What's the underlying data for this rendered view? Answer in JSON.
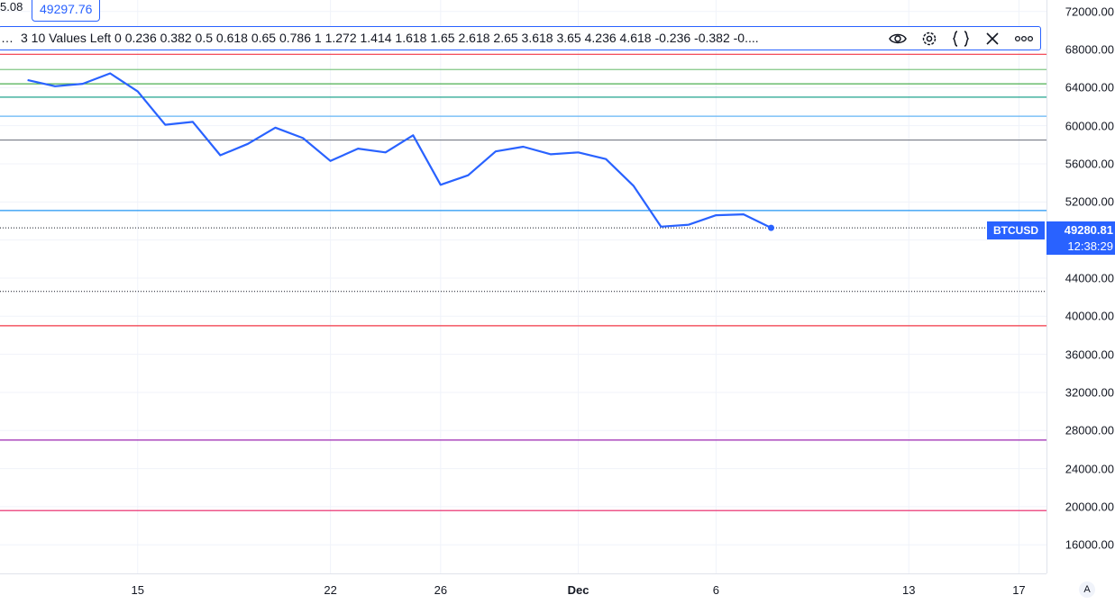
{
  "legend": {
    "prev_value_fragment": "5.08",
    "last_value": "49297.76"
  },
  "fib_toolbar": {
    "left_ellipsis": "…",
    "label": "3 10 Values Left 0 0.236 0.382 0.5 0.618 0.65 0.786 1 1.272 1.414 1.618 1.65 2.618 2.65 3.618 3.65 4.236 4.618 -0.236 -0.382 -0....",
    "icons": [
      "eye-icon",
      "gear-icon",
      "braces-icon",
      "close-icon",
      "more-icon"
    ]
  },
  "symbol_badge": {
    "symbol": "BTCUSD",
    "price": "49280.81",
    "countdown": "12:38:29"
  },
  "axis_auto_label": "A",
  "chart_data": {
    "type": "line",
    "series": [
      {
        "color": "#2962ff",
        "x": [
          "2021-11-11",
          "2021-11-12",
          "2021-11-13",
          "2021-11-14",
          "2021-11-15",
          "2021-11-16",
          "2021-11-17",
          "2021-11-18",
          "2021-11-19",
          "2021-11-20",
          "2021-11-21",
          "2021-11-22",
          "2021-11-23",
          "2021-11-24",
          "2021-11-25",
          "2021-11-26",
          "2021-11-27",
          "2021-11-28",
          "2021-11-29",
          "2021-11-30",
          "2021-12-01",
          "2021-12-02",
          "2021-12-03",
          "2021-12-04",
          "2021-12-05",
          "2021-12-06",
          "2021-12-07",
          "2021-12-08"
        ],
        "values": [
          64800,
          64150,
          64400,
          65500,
          63600,
          60100,
          60400,
          56900,
          58100,
          59800,
          58700,
          56300,
          57600,
          57200,
          59000,
          53800,
          54800,
          57300,
          57800,
          57000,
          57200,
          56500,
          53700,
          49400,
          49600,
          50600,
          50700,
          49280.81
        ]
      }
    ],
    "x_ticks": [
      {
        "date": "2021-11-15",
        "label": "15",
        "bold": false
      },
      {
        "date": "2021-11-22",
        "label": "22",
        "bold": false
      },
      {
        "date": "2021-11-26",
        "label": "26",
        "bold": false
      },
      {
        "date": "2021-12-01",
        "label": "Dec",
        "bold": true
      },
      {
        "date": "2021-12-06",
        "label": "6",
        "bold": false
      },
      {
        "date": "2021-12-13",
        "label": "13",
        "bold": false
      },
      {
        "date": "2021-12-17",
        "label": "17",
        "bold": false
      }
    ],
    "x_range": [
      "2021-11-10",
      "2021-12-18"
    ],
    "y_ticks": [
      16000,
      20000,
      24000,
      28000,
      32000,
      36000,
      40000,
      44000,
      48000,
      52000,
      56000,
      60000,
      64000,
      68000,
      72000
    ],
    "y_tick_labels": [
      "16000.00",
      "20000.00",
      "24000.00",
      "28000.00",
      "32000.00",
      "36000.00",
      "40000.00",
      "44000.00",
      "",
      "52000.00",
      "56000.00",
      "60000.00",
      "64000.00",
      "68000.00",
      "72000.00"
    ],
    "ylim": [
      13000,
      73200
    ],
    "grid": true,
    "fib_levels": [
      {
        "price": 67500,
        "color": "#f23645"
      },
      {
        "price": 65900,
        "color": "#81c784"
      },
      {
        "price": 64400,
        "color": "#4caf50"
      },
      {
        "price": 63000,
        "color": "#089981"
      },
      {
        "price": 61000,
        "color": "#64b5f6"
      },
      {
        "price": 58500,
        "color": "#787b86"
      },
      {
        "price": 51100,
        "color": "#2196f3"
      },
      {
        "price": 39000,
        "color": "#f23645"
      },
      {
        "price": 27000,
        "color": "#9c27b0"
      },
      {
        "price": 19600,
        "color": "#e91e63"
      }
    ],
    "dotted_levels": [
      {
        "price": 49280.81
      },
      {
        "price": 42600
      }
    ],
    "last_point": {
      "date": "2021-12-08",
      "value": 49280.81
    }
  }
}
